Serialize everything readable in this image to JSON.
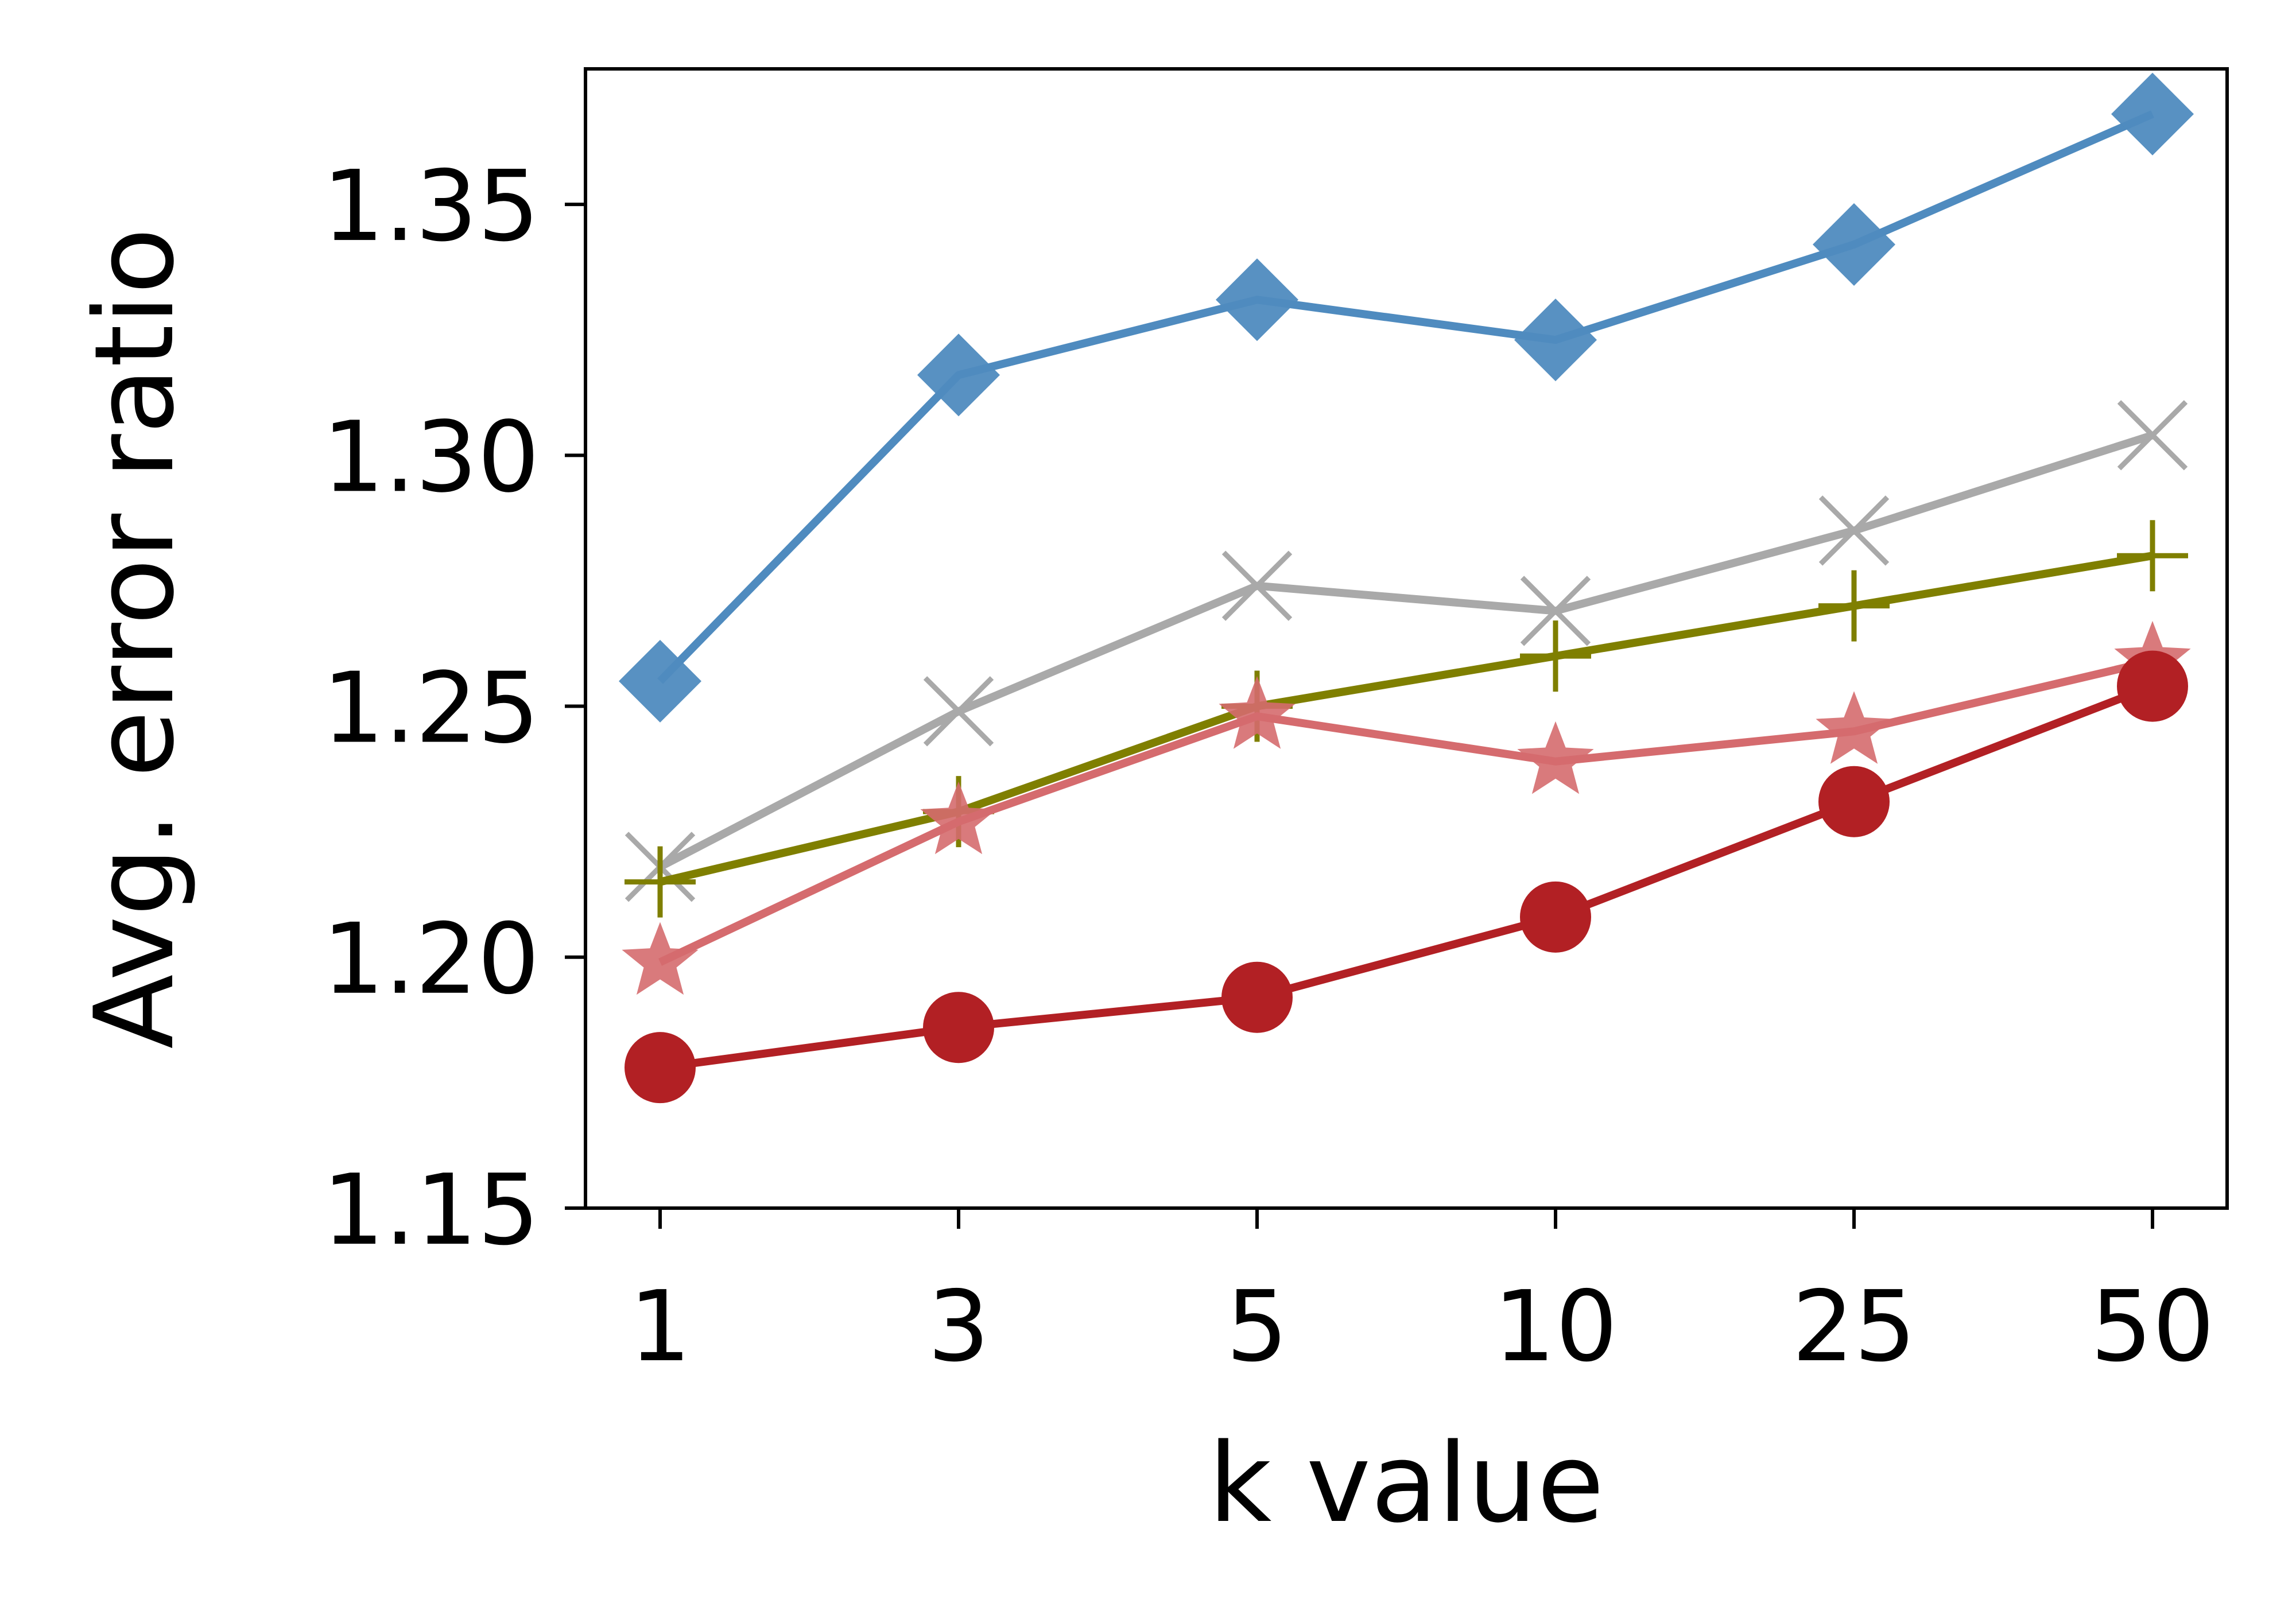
{
  "chart_data": {
    "type": "line",
    "title": "",
    "xlabel": "k value",
    "ylabel": "Avg. error ratio",
    "categories": [
      "1",
      "3",
      "5",
      "10",
      "25",
      "50"
    ],
    "ylim": [
      1.15,
      1.377
    ],
    "yticks": [
      "1.15",
      "1.20",
      "1.25",
      "1.30",
      "1.35"
    ],
    "grid": false,
    "legend": "none",
    "series": [
      {
        "marker": "diamond",
        "color": "#4f8bbf",
        "values": [
          1.255,
          1.316,
          1.331,
          1.323,
          1.342,
          1.368
        ]
      },
      {
        "marker": "x",
        "color": "#a9a9a9",
        "values": [
          1.218,
          1.249,
          1.274,
          1.269,
          1.285,
          1.304
        ]
      },
      {
        "marker": "plus",
        "color": "#7f7f00",
        "values": [
          1.215,
          1.229,
          1.25,
          1.26,
          1.27,
          1.28
        ]
      },
      {
        "marker": "star",
        "color": "#d56b6e",
        "values": [
          1.199,
          1.227,
          1.248,
          1.239,
          1.245,
          1.259
        ]
      },
      {
        "marker": "circle",
        "color": "#b22024",
        "values": [
          1.178,
          1.186,
          1.192,
          1.208,
          1.231,
          1.254
        ]
      }
    ]
  }
}
